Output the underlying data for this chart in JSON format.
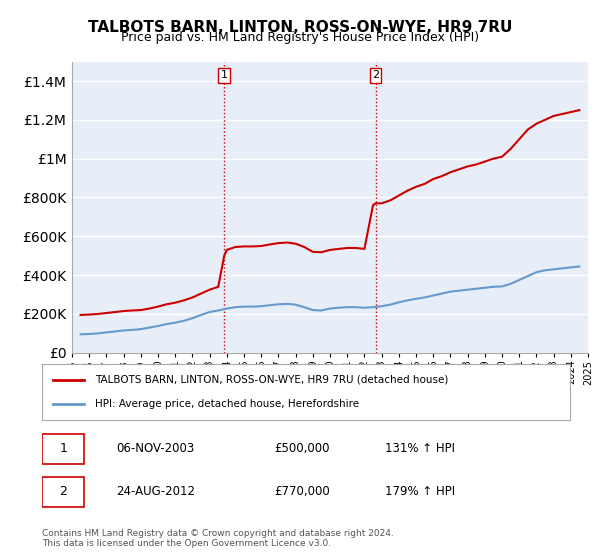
{
  "title": "TALBOTS BARN, LINTON, ROSS-ON-WYE, HR9 7RU",
  "subtitle": "Price paid vs. HM Land Registry's House Price Index (HPI)",
  "legend_line1": "TALBOTS BARN, LINTON, ROSS-ON-WYE, HR9 7RU (detached house)",
  "legend_line2": "HPI: Average price, detached house, Herefordshire",
  "footer1": "Contains HM Land Registry data © Crown copyright and database right 2024.",
  "footer2": "This data is licensed under the Open Government Licence v3.0.",
  "annotation1": {
    "num": "1",
    "date": "06-NOV-2003",
    "price": "£500,000",
    "hpi": "131% ↑ HPI",
    "x_year": 2003.85
  },
  "annotation2": {
    "num": "2",
    "date": "24-AUG-2012",
    "price": "£770,000",
    "hpi": "179% ↑ HPI",
    "x_year": 2012.65
  },
  "red_line_color": "#cc0000",
  "blue_line_color": "#6699cc",
  "vline_color": "#cc0000",
  "background_color": "#ffffff",
  "plot_bg_color": "#e8eef8",
  "grid_color": "#ffffff",
  "ylim": [
    0,
    1500000
  ],
  "xlim_start": 1995,
  "xlim_end": 2025,
  "hpi_data": {
    "years": [
      1995.5,
      1996.0,
      1996.5,
      1997.0,
      1997.5,
      1998.0,
      1998.5,
      1999.0,
      1999.5,
      2000.0,
      2000.5,
      2001.0,
      2001.5,
      2002.0,
      2002.5,
      2003.0,
      2003.5,
      2004.0,
      2004.5,
      2005.0,
      2005.5,
      2006.0,
      2006.5,
      2007.0,
      2007.5,
      2008.0,
      2008.5,
      2009.0,
      2009.5,
      2010.0,
      2010.5,
      2011.0,
      2011.5,
      2012.0,
      2012.5,
      2013.0,
      2013.5,
      2014.0,
      2014.5,
      2015.0,
      2015.5,
      2016.0,
      2016.5,
      2017.0,
      2017.5,
      2018.0,
      2018.5,
      2019.0,
      2019.5,
      2020.0,
      2020.5,
      2021.0,
      2021.5,
      2022.0,
      2022.5,
      2023.0,
      2023.5,
      2024.0,
      2024.5
    ],
    "values": [
      95000,
      97000,
      100000,
      105000,
      110000,
      115000,
      118000,
      122000,
      130000,
      138000,
      148000,
      155000,
      165000,
      178000,
      195000,
      210000,
      218000,
      228000,
      235000,
      238000,
      238000,
      240000,
      245000,
      250000,
      252000,
      248000,
      235000,
      220000,
      218000,
      228000,
      232000,
      235000,
      235000,
      232000,
      235000,
      240000,
      248000,
      260000,
      270000,
      278000,
      285000,
      295000,
      305000,
      315000,
      320000,
      325000,
      330000,
      335000,
      340000,
      342000,
      355000,
      375000,
      395000,
      415000,
      425000,
      430000,
      435000,
      440000,
      445000
    ]
  },
  "red_line_data": {
    "years": [
      1995.5,
      1996.0,
      1996.5,
      1997.0,
      1997.5,
      1998.0,
      1998.5,
      1999.0,
      1999.5,
      2000.0,
      2000.5,
      2001.0,
      2001.5,
      2002.0,
      2002.5,
      2003.0,
      2003.5,
      2003.85,
      2004.0,
      2004.5,
      2005.0,
      2005.5,
      2006.0,
      2006.5,
      2007.0,
      2007.5,
      2008.0,
      2008.5,
      2009.0,
      2009.5,
      2010.0,
      2010.5,
      2011.0,
      2011.5,
      2012.0,
      2012.65,
      2012.5,
      2013.0,
      2013.5,
      2014.0,
      2014.5,
      2015.0,
      2015.5,
      2016.0,
      2016.5,
      2017.0,
      2017.5,
      2018.0,
      2018.5,
      2019.0,
      2019.5,
      2020.0,
      2020.5,
      2021.0,
      2021.5,
      2022.0,
      2022.5,
      2023.0,
      2023.5,
      2024.0,
      2024.5
    ],
    "values": [
      195000,
      197000,
      200000,
      205000,
      210000,
      215000,
      218000,
      220000,
      228000,
      238000,
      250000,
      258000,
      270000,
      285000,
      305000,
      325000,
      340000,
      500000,
      530000,
      545000,
      548000,
      548000,
      550000,
      558000,
      565000,
      568000,
      562000,
      545000,
      520000,
      518000,
      530000,
      535000,
      540000,
      540000,
      535000,
      770000,
      760000,
      770000,
      785000,
      810000,
      835000,
      855000,
      870000,
      895000,
      910000,
      930000,
      945000,
      960000,
      970000,
      985000,
      1000000,
      1010000,
      1050000,
      1100000,
      1150000,
      1180000,
      1200000,
      1220000,
      1230000,
      1240000,
      1250000
    ]
  }
}
